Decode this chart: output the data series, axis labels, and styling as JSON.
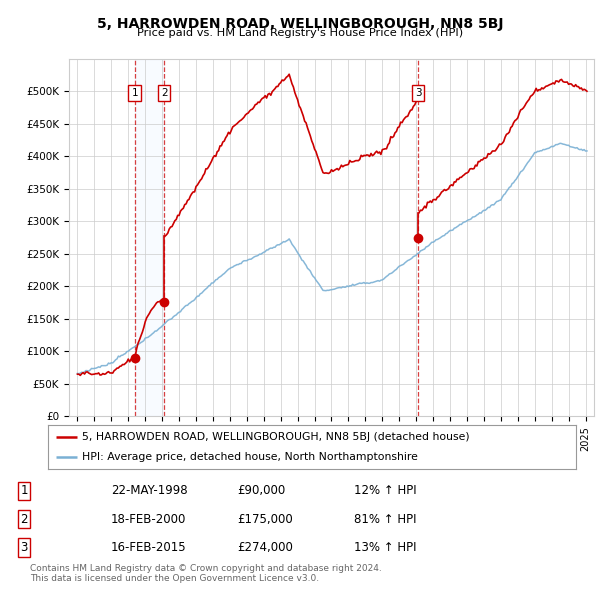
{
  "title": "5, HARROWDEN ROAD, WELLINGBOROUGH, NN8 5BJ",
  "subtitle": "Price paid vs. HM Land Registry's House Price Index (HPI)",
  "footer1": "Contains HM Land Registry data © Crown copyright and database right 2024.",
  "footer2": "This data is licensed under the Open Government Licence v3.0.",
  "legend_red": "5, HARROWDEN ROAD, WELLINGBOROUGH, NN8 5BJ (detached house)",
  "legend_blue": "HPI: Average price, detached house, North Northamptonshire",
  "transactions": [
    {
      "num": 1,
      "date": "22-MAY-1998",
      "price": "£90,000",
      "change": "12% ↑ HPI",
      "year": 1998.38,
      "value": 90000
    },
    {
      "num": 2,
      "date": "18-FEB-2000",
      "price": "£175,000",
      "change": "81% ↑ HPI",
      "year": 2000.12,
      "value": 175000
    },
    {
      "num": 3,
      "date": "16-FEB-2015",
      "price": "£274,000",
      "change": "13% ↑ HPI",
      "year": 2015.12,
      "value": 274000
    }
  ],
  "red_color": "#cc0000",
  "blue_color": "#7ab0d4",
  "shaded_color": "#ddeeff",
  "background_color": "#ffffff",
  "grid_color": "#cccccc",
  "ylim": [
    0,
    550000
  ],
  "yticks": [
    0,
    50000,
    100000,
    150000,
    200000,
    250000,
    300000,
    350000,
    400000,
    450000,
    500000
  ],
  "ytick_labels": [
    "£0",
    "£50K",
    "£100K",
    "£150K",
    "£200K",
    "£250K",
    "£300K",
    "£350K",
    "£400K",
    "£450K",
    "£500K"
  ],
  "xlim_start": 1994.5,
  "xlim_end": 2025.5,
  "xticks": [
    1995,
    1996,
    1997,
    1998,
    1999,
    2000,
    2001,
    2002,
    2003,
    2004,
    2005,
    2006,
    2007,
    2008,
    2009,
    2010,
    2011,
    2012,
    2013,
    2014,
    2015,
    2016,
    2017,
    2018,
    2019,
    2020,
    2021,
    2022,
    2023,
    2024,
    2025
  ]
}
